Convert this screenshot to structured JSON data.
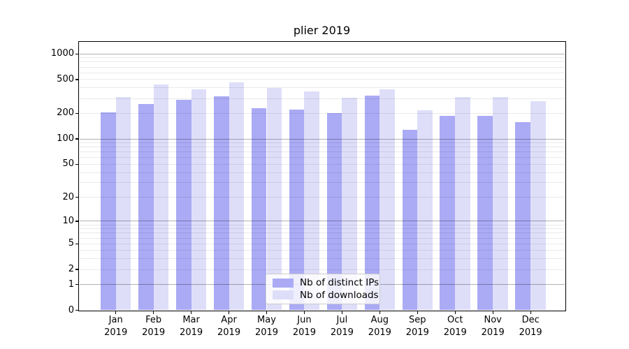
{
  "title": "plier 2019",
  "chart_data": {
    "type": "bar",
    "title": "plier 2019",
    "categories": [
      "Jan",
      "Feb",
      "Mar",
      "Apr",
      "May",
      "Jun",
      "Jul",
      "Aug",
      "Sep",
      "Oct",
      "Nov",
      "Dec"
    ],
    "x_year_label": "2019",
    "series": [
      {
        "name": "Nb of distinct IPs",
        "color": "#aaaaf5",
        "values": [
          207,
          260,
          287,
          318,
          230,
          221,
          203,
          321,
          128,
          186,
          186,
          157
        ]
      },
      {
        "name": "Nb of downloads",
        "color": "#dedef9",
        "values": [
          311,
          440,
          380,
          465,
          395,
          360,
          306,
          384,
          218,
          313,
          313,
          280
        ]
      }
    ],
    "yscale": "log10(value+1)",
    "ylim": [
      0,
      1380
    ],
    "y_tick_labels": [
      1000,
      500,
      200,
      100,
      50,
      20,
      10,
      5,
      2,
      1,
      0
    ],
    "y_major_gridlines": [
      1,
      10,
      100,
      1000
    ],
    "y_minor_gridlines": [
      2,
      3,
      4,
      5,
      6,
      7,
      8,
      9,
      20,
      30,
      40,
      50,
      60,
      70,
      80,
      90,
      200,
      300,
      400,
      500,
      600,
      700,
      800,
      900
    ],
    "grid": true,
    "legend_position": "lower center"
  },
  "colors": {
    "major_grid": "#b3b3b3",
    "minor_grid": "#eaeaea",
    "spine": "#000000",
    "text": "#000000",
    "legend_border": "#cccccc"
  }
}
